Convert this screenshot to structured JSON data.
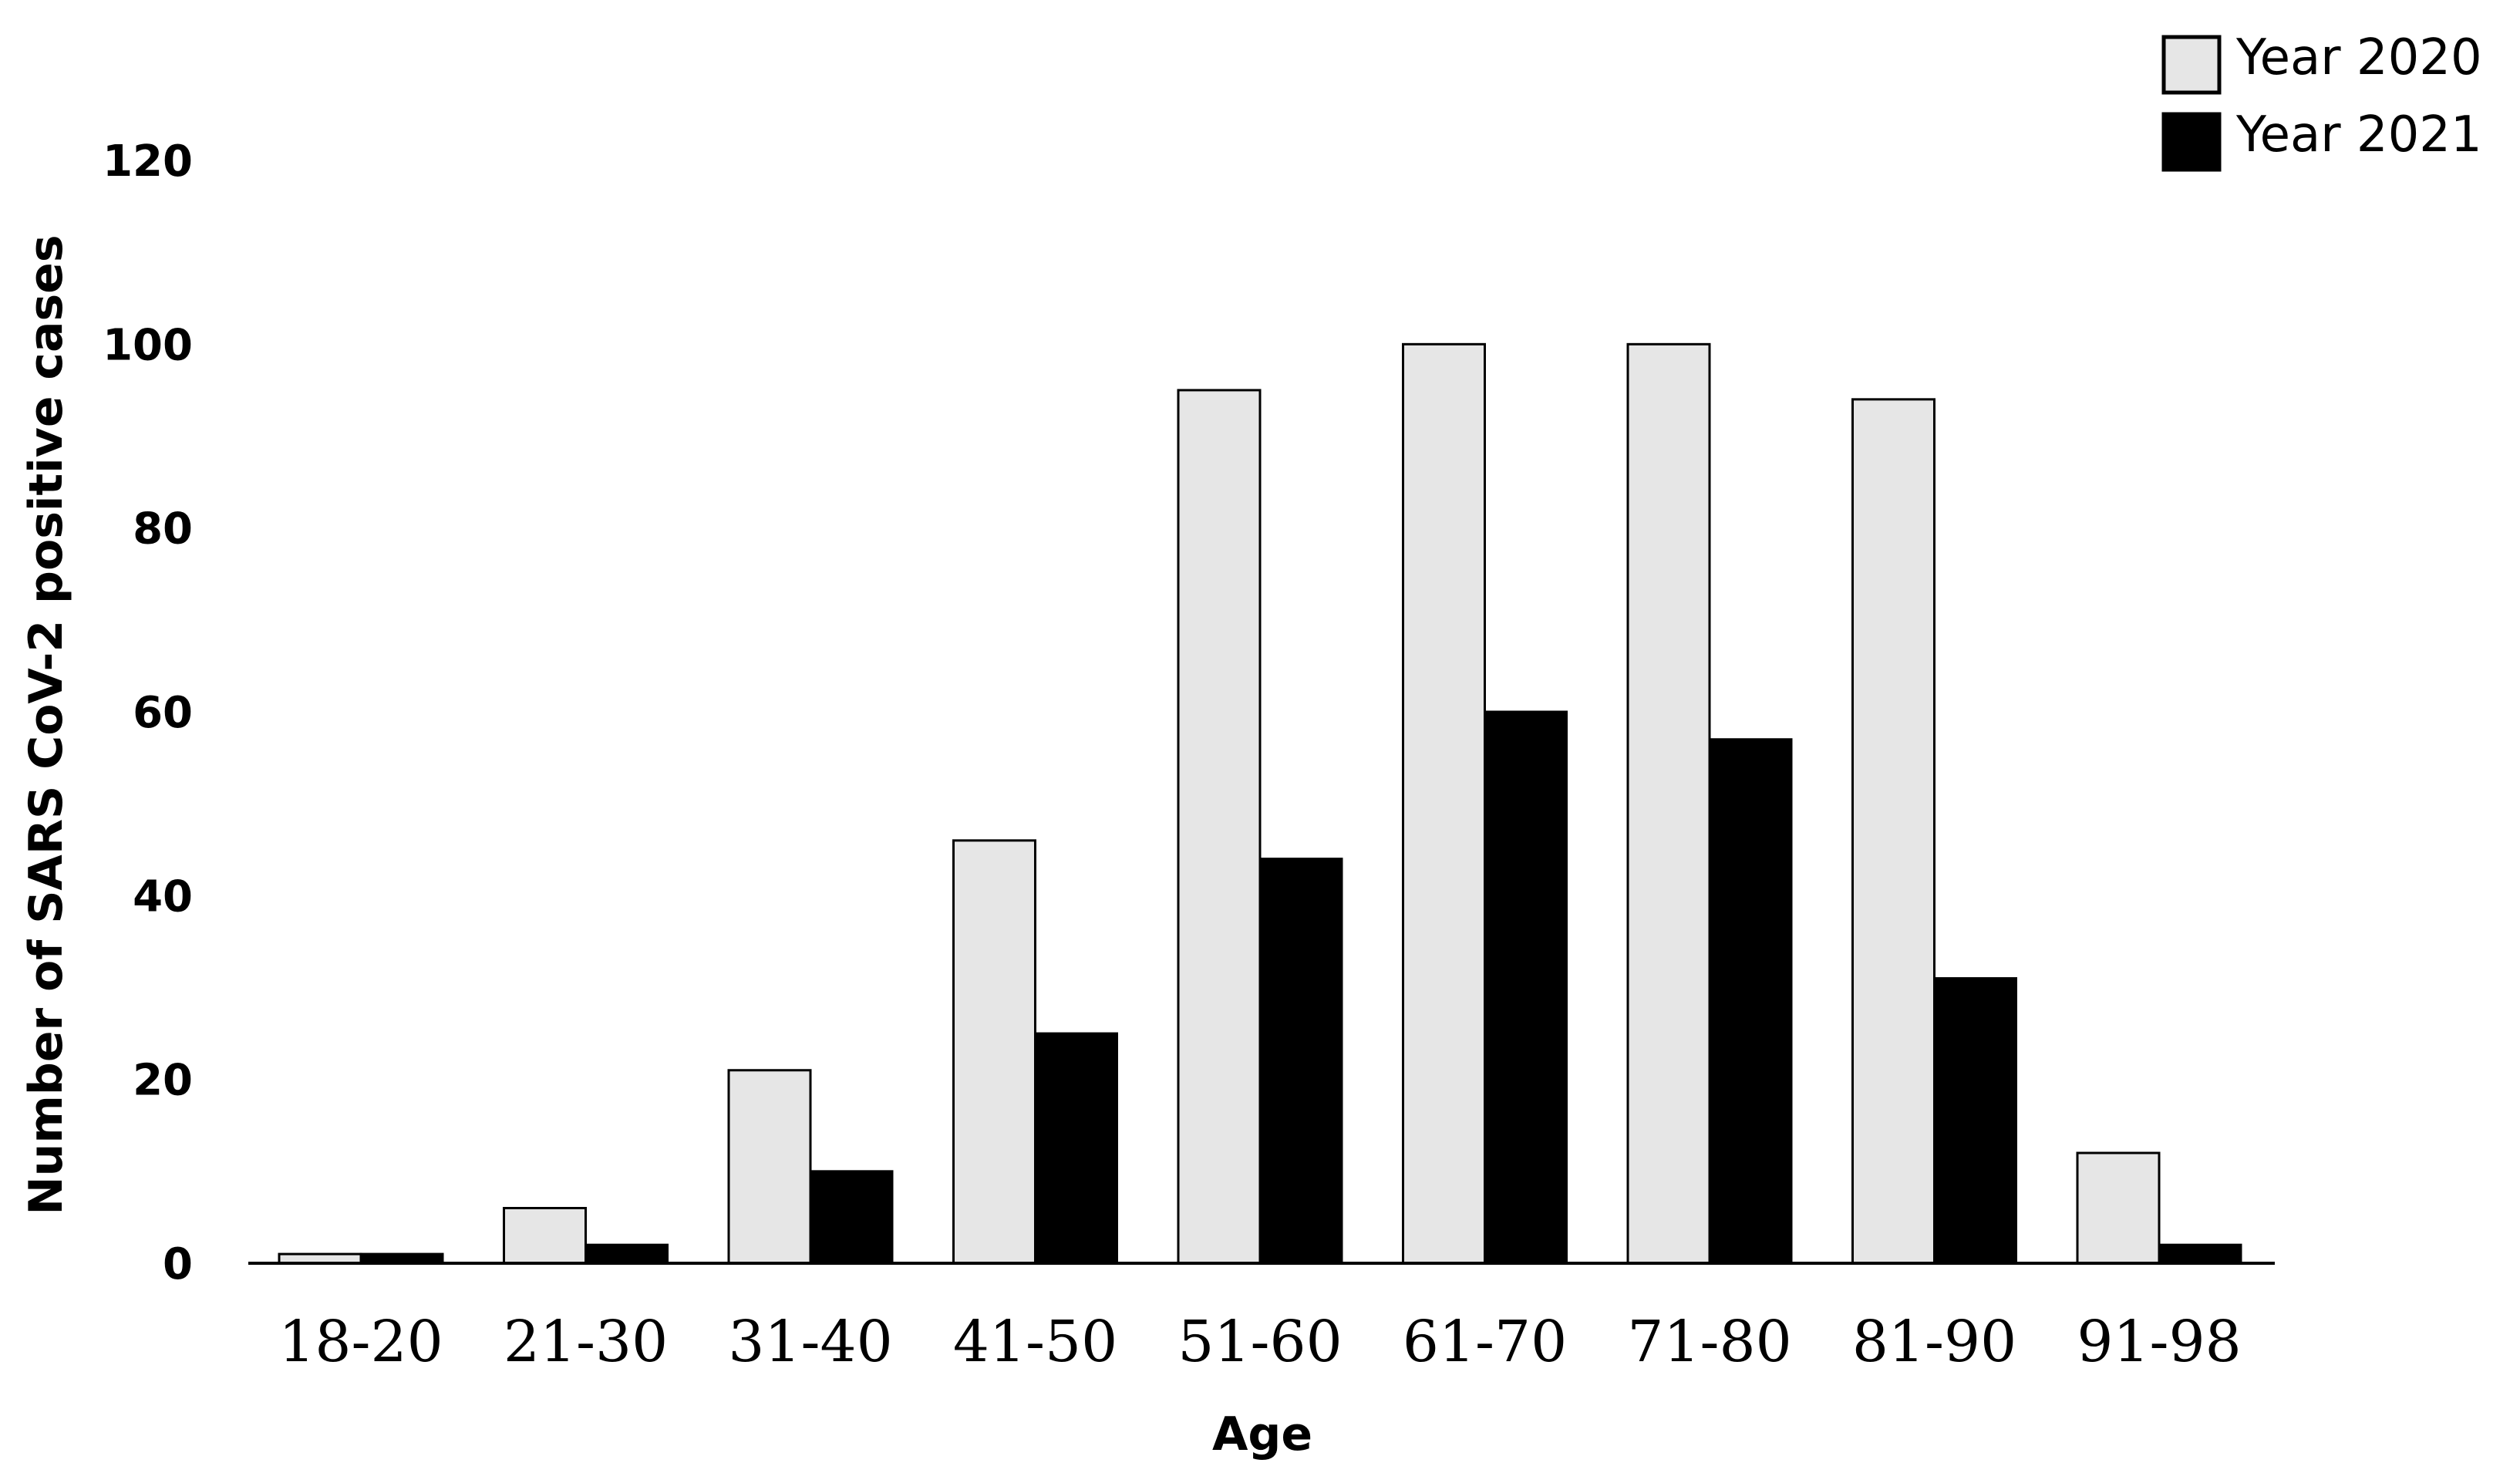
{
  "chart_data": {
    "type": "bar",
    "title": "",
    "xlabel": "Age",
    "ylabel": "Number of SARS CoV-2 positive cases",
    "categories": [
      "18-20",
      "21-30",
      "31-40",
      "41-50",
      "51-60",
      "61-70",
      "71-80",
      "81-90",
      "91-98"
    ],
    "series": [
      {
        "name": "Year 2020",
        "values": [
          1,
          6,
          21,
          46,
          95,
          100,
          100,
          94,
          12
        ],
        "color": "#e6e6e6"
      },
      {
        "name": "Year 2021",
        "values": [
          1,
          2,
          10,
          25,
          44,
          60,
          57,
          31,
          2
        ],
        "color": "#000000"
      }
    ],
    "ylim": [
      0,
      120
    ],
    "yticks": [
      0,
      20,
      40,
      60,
      80,
      100,
      120
    ],
    "grid": false,
    "legend_position": "top-right"
  }
}
